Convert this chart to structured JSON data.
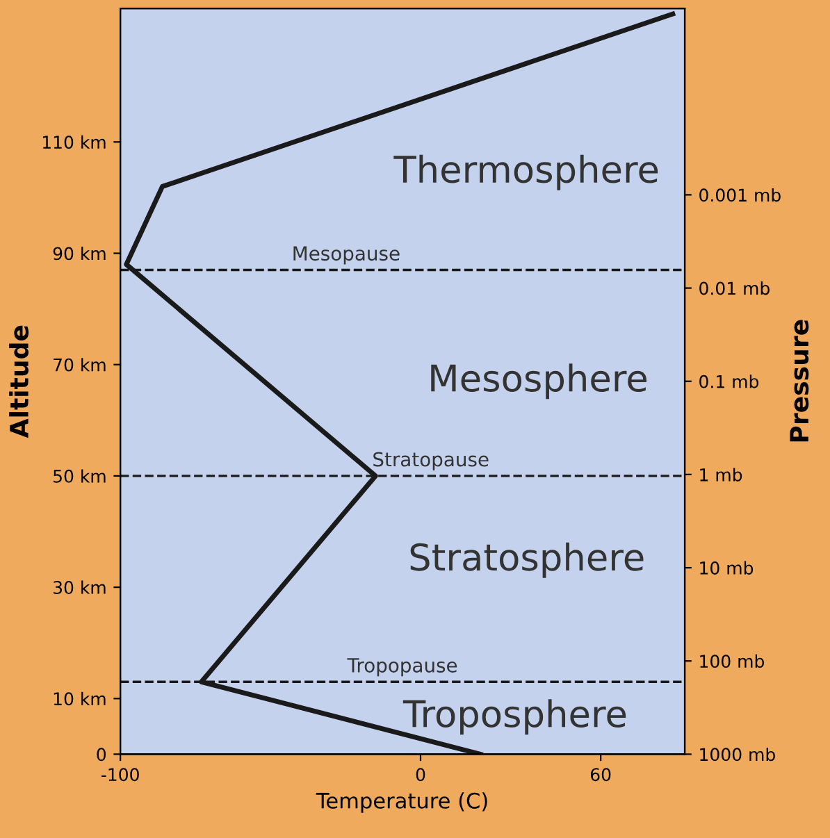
{
  "chart_data": {
    "type": "line",
    "xlabel": "Temperature (C)",
    "ylabel": "Altitude",
    "y2label": "Pressure",
    "series": [
      {
        "color": "#1a1a1a",
        "x": [
          20,
          -73,
          -15,
          -98,
          -86,
          84
        ],
        "values": [
          0,
          13,
          50,
          88,
          102,
          133
        ]
      }
    ],
    "xlim": [
      -100,
      88
    ],
    "xticks": [
      -100,
      0,
      60
    ],
    "ylim": [
      0,
      134
    ],
    "yticks": [
      0,
      {
        "value": 10,
        "label": "10 km"
      },
      {
        "value": 30,
        "label": "30 km"
      },
      {
        "value": 50,
        "label": "50 km"
      },
      {
        "value": 70,
        "label": "70 km"
      },
      {
        "value": 90,
        "label": "90 km"
      },
      {
        "value": 110,
        "label": "110 km"
      }
    ],
    "log": "y2",
    "y2lim": [
      1000,
      1e-05
    ],
    "y2ticks": [
      {
        "value": 1000,
        "label": "1000 mb"
      },
      {
        "value": 100,
        "label": "100 mb"
      },
      {
        "value": 10,
        "label": "10 mb"
      },
      {
        "value": 1,
        "label": "1 mb"
      },
      {
        "value": 0.1,
        "label": "0.1 mb"
      },
      {
        "value": 0.01,
        "label": "0.01 mb"
      },
      {
        "value": 0.001,
        "label": "0.001 mb"
      }
    ],
    "ref_lines": [
      {
        "axis": "y",
        "value": 13,
        "label": "Tropopause",
        "line_style": "dashed",
        "color": "#1a1a1a"
      },
      {
        "axis": "y",
        "value": 50,
        "label": "Stratopause",
        "line_style": "dashed",
        "color": "#1a1a1a"
      },
      {
        "axis": "y",
        "value": 87,
        "label": "Mesopause",
        "line_style": "dashed",
        "color": "#1a1a1a"
      }
    ],
    "annotations": [
      "Thermosphere",
      "Mesosphere",
      "Stratosphere",
      "Troposphere"
    ],
    "grid": false,
    "legend": false,
    "marker": "none",
    "line_style": "solid"
  }
}
